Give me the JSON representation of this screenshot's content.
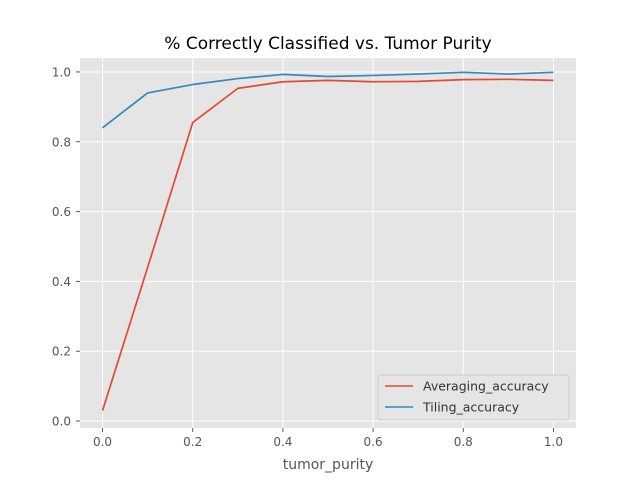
{
  "chart_data": {
    "type": "line",
    "title": "% Correctly Classified vs. Tumor Purity",
    "xlabel": "tumor_purity",
    "ylabel": "",
    "xlim": [
      -0.05,
      1.05
    ],
    "ylim": [
      -0.02,
      1.04
    ],
    "xticks": [
      "0.0",
      "0.2",
      "0.4",
      "0.6",
      "0.8",
      "1.0"
    ],
    "yticks": [
      "0.0",
      "0.2",
      "0.4",
      "0.6",
      "0.8",
      "1.0"
    ],
    "grid": true,
    "legend_position": "lower-right",
    "x": [
      0.0,
      0.1,
      0.2,
      0.3,
      0.4,
      0.5,
      0.6,
      0.7,
      0.8,
      0.9,
      1.0
    ],
    "series": [
      {
        "name": "Averaging_accuracy",
        "color": "#e24a33",
        "values": [
          0.03,
          0.44,
          0.855,
          0.953,
          0.972,
          0.976,
          0.972,
          0.973,
          0.978,
          0.979,
          0.976
        ]
      },
      {
        "name": "Tiling_accuracy",
        "color": "#348abd",
        "values": [
          0.84,
          0.94,
          0.964,
          0.981,
          0.993,
          0.987,
          0.99,
          0.994,
          0.999,
          0.994,
          0.999
        ]
      }
    ]
  }
}
